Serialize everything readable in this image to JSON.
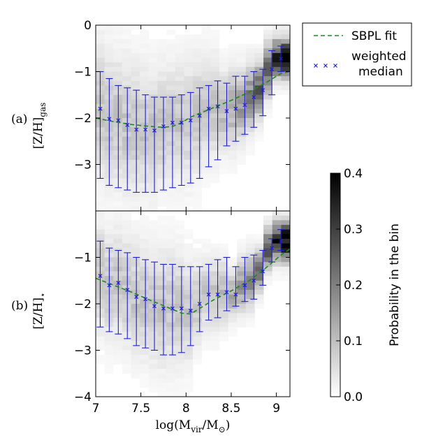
{
  "chart_data": [
    {
      "panel": "a",
      "type": "heatmap",
      "panel_letter": "(a)",
      "ylabel_base": "[Z/H]",
      "ylabel_sub": "gas",
      "xlim": [
        7.0,
        9.15
      ],
      "ylim": [
        0,
        -4
      ],
      "yticks": [
        0,
        -1,
        -2,
        -3
      ],
      "ytick_labels": [
        "0",
        "−1",
        "−2",
        "−3"
      ],
      "series": [
        {
          "name": "weighted median",
          "x": [
            7.05,
            7.15,
            7.25,
            7.35,
            7.45,
            7.55,
            7.65,
            7.75,
            7.85,
            7.95,
            8.05,
            8.15,
            8.25,
            8.35,
            8.45,
            8.55,
            8.65,
            8.75,
            8.85,
            8.95,
            9.05
          ],
          "y": [
            -1.8,
            -2.02,
            -2.05,
            -2.15,
            -2.25,
            -2.25,
            -2.27,
            -2.18,
            -2.1,
            -2.1,
            -2.05,
            -1.95,
            -1.8,
            -1.75,
            -1.85,
            -1.8,
            -1.72,
            -1.55,
            -1.4,
            -0.95,
            -0.72
          ],
          "err_low": [
            -3.3,
            -3.45,
            -3.5,
            -3.55,
            -3.6,
            -3.6,
            -3.6,
            -3.55,
            -3.5,
            -3.45,
            -3.4,
            -3.3,
            -3.05,
            -2.9,
            -2.6,
            -2.5,
            -2.35,
            -2.2,
            -1.95,
            -1.5,
            -1.0
          ],
          "err_high": [
            -1.0,
            -1.15,
            -1.3,
            -1.35,
            -1.4,
            -1.5,
            -1.55,
            -1.55,
            -1.55,
            -1.5,
            -1.45,
            -1.35,
            -1.3,
            -1.2,
            -1.25,
            -1.1,
            -1.1,
            -1.0,
            -0.95,
            -0.55,
            -0.45
          ]
        },
        {
          "name": "SBPL fit",
          "x": [
            7.0,
            7.2,
            7.4,
            7.6,
            7.75,
            7.85,
            7.95,
            8.05,
            8.15,
            8.3,
            8.5,
            8.7,
            8.9,
            9.05,
            9.15
          ],
          "y": [
            -2.0,
            -2.08,
            -2.14,
            -2.18,
            -2.2,
            -2.18,
            -2.1,
            -1.98,
            -1.9,
            -1.78,
            -1.62,
            -1.44,
            -1.22,
            -1.04,
            -1.0
          ]
        }
      ]
    },
    {
      "panel": "b",
      "type": "heatmap",
      "panel_letter": "(b)",
      "ylabel_base": "[Z/H]",
      "ylabel_sub": "⋆",
      "xlim": [
        7.0,
        9.15
      ],
      "ylim": [
        0,
        -4
      ],
      "yticks": [
        -1,
        -2,
        -3,
        -4
      ],
      "ytick_labels": [
        "−1",
        "−2",
        "−3",
        "−4"
      ],
      "xticks": [
        7,
        7.5,
        8,
        8.5,
        9
      ],
      "xtick_labels": [
        "7",
        "7.5",
        "8",
        "8.5",
        "9"
      ],
      "xlabel_base": "log(M",
      "xlabel_sub1": "vir",
      "xlabel_mid": "/M",
      "xlabel_sub2": "⊙",
      "xlabel_end": ")",
      "series": [
        {
          "name": "weighted median",
          "x": [
            7.05,
            7.15,
            7.25,
            7.35,
            7.45,
            7.55,
            7.65,
            7.75,
            7.85,
            7.95,
            8.05,
            8.15,
            8.25,
            8.35,
            8.45,
            8.55,
            8.65,
            8.75,
            8.85,
            8.95,
            9.05
          ],
          "y": [
            -1.4,
            -1.6,
            -1.55,
            -1.7,
            -1.85,
            -1.9,
            -2.05,
            -2.1,
            -2.1,
            -2.1,
            -2.15,
            -2.0,
            -1.8,
            -1.8,
            -1.75,
            -1.8,
            -1.6,
            -1.5,
            -1.3,
            -0.8,
            -0.65
          ],
          "err_low": [
            -2.5,
            -2.6,
            -2.65,
            -2.75,
            -2.9,
            -2.95,
            -3.0,
            -3.1,
            -3.1,
            -3.05,
            -2.9,
            -2.6,
            -2.35,
            -2.3,
            -2.15,
            -2.05,
            -1.95,
            -1.9,
            -1.6,
            -1.1,
            -0.85
          ],
          "err_high": [
            -0.65,
            -0.8,
            -0.85,
            -0.9,
            -1.0,
            -1.05,
            -1.1,
            -1.15,
            -1.15,
            -1.2,
            -1.2,
            -1.2,
            -1.15,
            -1.05,
            -1.0,
            -1.2,
            -1.0,
            -0.95,
            -0.85,
            -0.6,
            -0.4
          ]
        },
        {
          "name": "SBPL fit",
          "x": [
            7.0,
            7.2,
            7.4,
            7.6,
            7.8,
            7.95,
            8.05,
            8.15,
            8.3,
            8.5,
            8.7,
            8.9,
            9.05,
            9.15
          ],
          "y": [
            -1.45,
            -1.6,
            -1.75,
            -1.92,
            -2.08,
            -2.2,
            -2.22,
            -2.1,
            -1.92,
            -1.72,
            -1.5,
            -1.2,
            -0.95,
            -0.82
          ]
        }
      ]
    }
  ],
  "legend": {
    "fit_label": "SBPL fit",
    "median_label_line1": "weighted",
    "median_label_line2": "median"
  },
  "colorbar": {
    "label": "Probability in the bin",
    "range": [
      0.0,
      0.4
    ],
    "tick_labels": [
      "0.0",
      "0.1",
      "0.2",
      "0.3",
      "0.4"
    ]
  },
  "colors": {
    "median": "#1f1fd0",
    "fit": "#1a8a1a"
  }
}
